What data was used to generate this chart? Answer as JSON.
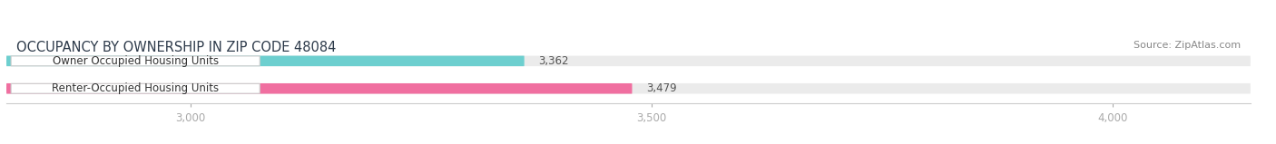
{
  "title": "OCCUPANCY BY OWNERSHIP IN ZIP CODE 48084",
  "source": "Source: ZipAtlas.com",
  "categories": [
    "Owner Occupied Housing Units",
    "Renter-Occupied Housing Units"
  ],
  "values": [
    3362,
    3479
  ],
  "bar_colors": [
    "#6dcfcf",
    "#f06fa0"
  ],
  "bar_bg_color": "#ebebeb",
  "xlim_min": 2800,
  "xlim_max": 4150,
  "data_min": 2800,
  "xticks": [
    3000,
    3500,
    4000
  ],
  "xtick_labels": [
    "3,000",
    "3,500",
    "4,000"
  ],
  "title_fontsize": 10.5,
  "source_fontsize": 8,
  "label_fontsize": 8.5,
  "value_fontsize": 8.5,
  "background_color": "#ffffff",
  "bar_height": 0.38,
  "title_color": "#2d3a4a",
  "source_color": "#888888",
  "label_color": "#333333",
  "value_color": "#555555"
}
